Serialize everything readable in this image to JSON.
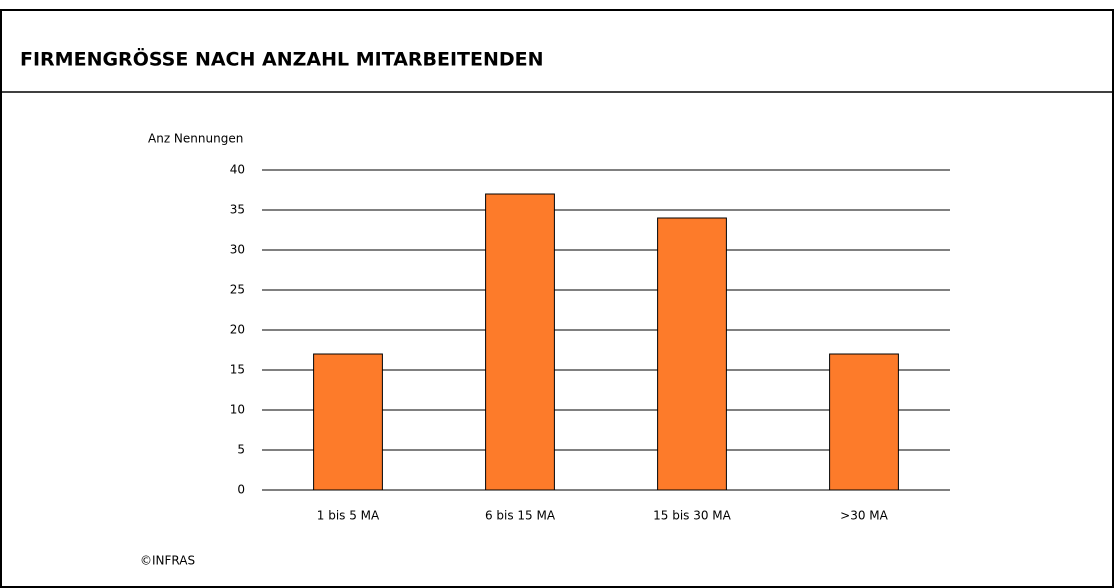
{
  "chart_data": {
    "type": "bar",
    "title": "FIRMENGRÖSSE NACH ANZAHL MITARBEITENDEN",
    "y_label": "Anz Nennungen",
    "source": "©INFRAS",
    "categories": [
      "1 bis 5 MA",
      "6 bis 15 MA",
      "15 bis 30 MA",
      ">30 MA"
    ],
    "values": [
      17,
      37,
      34,
      17
    ],
    "color": "#fd7b2a",
    "ylim": [
      0,
      40
    ],
    "yticks": [
      0,
      5,
      10,
      15,
      20,
      25,
      30,
      35,
      40
    ],
    "grid": true
  }
}
